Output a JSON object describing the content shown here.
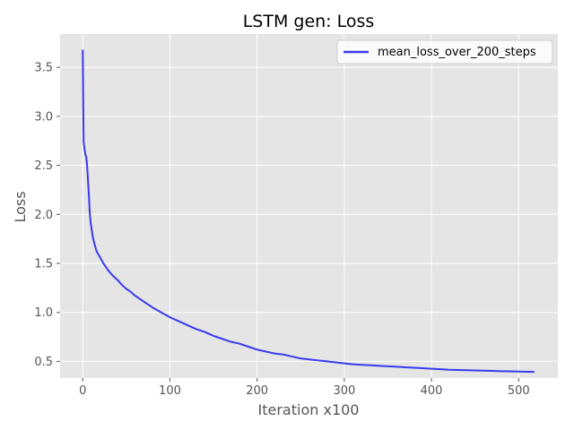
{
  "chart_data": {
    "type": "line",
    "title": "LSTM gen: Loss",
    "xlabel": "Iteration x100",
    "ylabel": "Loss",
    "xlim": [
      -26,
      545
    ],
    "ylim": [
      0.33,
      3.84
    ],
    "xticks": [
      0,
      100,
      200,
      300,
      400,
      500
    ],
    "yticks": [
      0.5,
      1.0,
      1.5,
      2.0,
      2.5,
      3.0,
      3.5
    ],
    "ytick_labels": [
      "0.5",
      "1.0",
      "1.5",
      "2.0",
      "2.5",
      "3.0",
      "3.5"
    ],
    "grid": true,
    "legend_position": "top-right",
    "colors": {
      "background": "#e5e5e5",
      "grid": "#ffffff",
      "line": "#3a3aee",
      "legend_bg": "#ffffff",
      "legend_border": "#cccccc"
    },
    "series": [
      {
        "name": "mean_loss_over_200_steps",
        "x": [
          0,
          1,
          2,
          3,
          4,
          5,
          6,
          7,
          8,
          9,
          10,
          11,
          12,
          14,
          16,
          18,
          20,
          23,
          26,
          30,
          35,
          40,
          45,
          50,
          55,
          60,
          70,
          80,
          90,
          100,
          110,
          120,
          130,
          140,
          150,
          160,
          170,
          180,
          190,
          200,
          210,
          220,
          230,
          240,
          250,
          260,
          270,
          280,
          290,
          300,
          310,
          320,
          330,
          340,
          350,
          360,
          370,
          380,
          390,
          400,
          410,
          420,
          430,
          440,
          450,
          460,
          470,
          480,
          490,
          500,
          510,
          518
        ],
        "values": [
          3.68,
          2.74,
          2.67,
          2.61,
          2.59,
          2.5,
          2.35,
          2.2,
          2.02,
          1.92,
          1.86,
          1.8,
          1.75,
          1.68,
          1.62,
          1.59,
          1.56,
          1.51,
          1.47,
          1.42,
          1.37,
          1.33,
          1.28,
          1.24,
          1.21,
          1.17,
          1.11,
          1.05,
          1.0,
          0.95,
          0.91,
          0.87,
          0.83,
          0.8,
          0.76,
          0.73,
          0.7,
          0.68,
          0.65,
          0.62,
          0.6,
          0.58,
          0.57,
          0.55,
          0.53,
          0.52,
          0.51,
          0.5,
          0.49,
          0.48,
          0.47,
          0.465,
          0.46,
          0.455,
          0.45,
          0.445,
          0.44,
          0.435,
          0.43,
          0.425,
          0.42,
          0.415,
          0.412,
          0.41,
          0.408,
          0.405,
          0.403,
          0.4,
          0.398,
          0.396,
          0.394,
          0.393
        ]
      }
    ]
  }
}
